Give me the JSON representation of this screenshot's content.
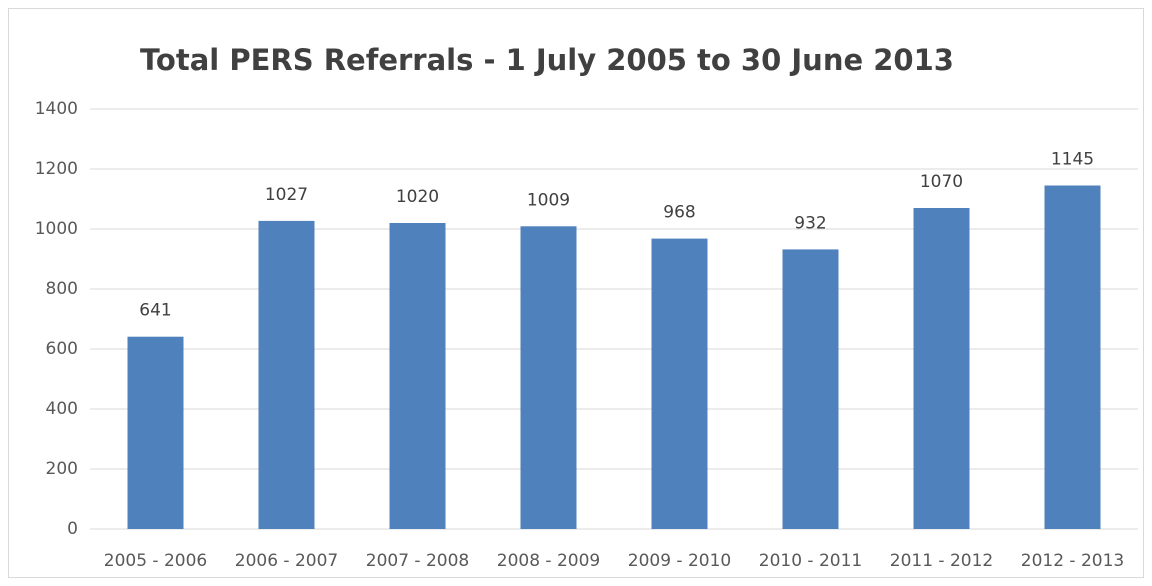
{
  "chart_data": {
    "type": "bar",
    "title": "Total PERS Referrals - 1 July 2005 to 30 June 2013",
    "categories": [
      "2005 - 2006",
      "2006 - 2007",
      "2007 - 2008",
      "2008 - 2009",
      "2009 - 2010",
      "2010 - 2011",
      "2011 - 2012",
      "2012 - 2013"
    ],
    "values": [
      641,
      1027,
      1020,
      1009,
      968,
      932,
      1070,
      1145
    ],
    "color": "#4f81bd",
    "ylim": [
      0,
      1400
    ],
    "yticks": [
      0,
      200,
      400,
      600,
      800,
      1000,
      1200,
      1400
    ],
    "grid": true
  }
}
